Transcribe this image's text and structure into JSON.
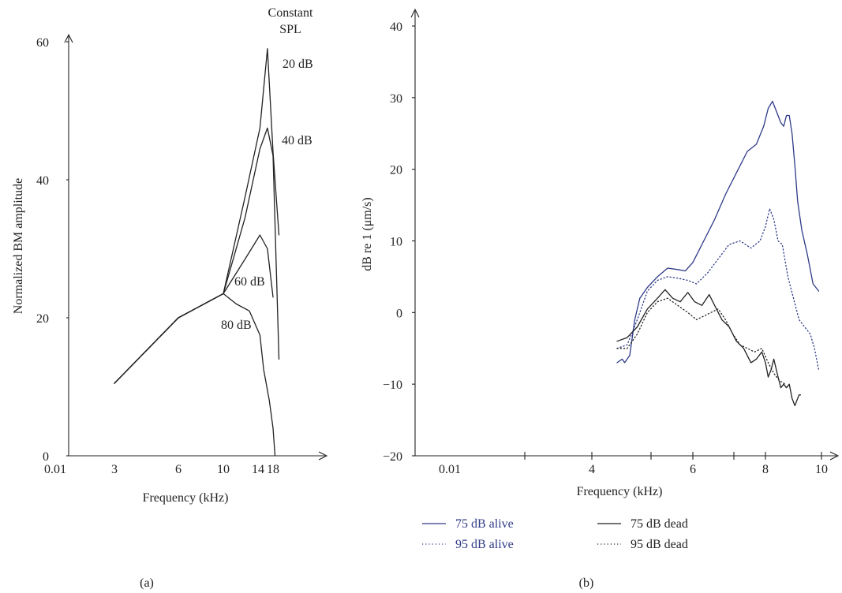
{
  "chart_data": [
    {
      "type": "line",
      "panel_label": "(a)",
      "xlabel": "Frequency (kHz)",
      "ylabel": "Normalized BM amplitude",
      "x_tick_labels": [
        "0.01",
        "3",
        "6",
        "10",
        "14",
        "18"
      ],
      "y_ticks": [
        0,
        20,
        40,
        60
      ],
      "ylim": [
        0,
        60
      ],
      "legend_title": "Constant\nSPL",
      "series": [
        {
          "name": "20 dB",
          "x": [
            3,
            6,
            10,
            12.5,
            14.5,
            16.5,
            18,
            19.5
          ],
          "y": [
            10.5,
            20,
            23.5,
            37.5,
            47.5,
            59,
            44,
            32
          ]
        },
        {
          "name": "40 dB",
          "x": [
            3,
            6,
            10,
            12.5,
            14.5,
            16.5,
            18,
            19.5
          ],
          "y": [
            10.5,
            20,
            23.5,
            34.5,
            44.5,
            47.5,
            43.5,
            14
          ]
        },
        {
          "name": "60 dB",
          "x": [
            3,
            6,
            10,
            12.5,
            14.5,
            16.5,
            18
          ],
          "y": [
            10.5,
            20,
            23.5,
            28.5,
            32,
            30,
            23
          ]
        },
        {
          "name": "80 dB",
          "x": [
            3,
            6,
            10,
            11.5,
            13,
            14.5,
            15.5,
            17,
            18,
            18.5
          ],
          "y": [
            10.5,
            20,
            23.5,
            22,
            21,
            17.5,
            12.5,
            8,
            4,
            0
          ]
        }
      ]
    },
    {
      "type": "line",
      "panel_label": "(b)",
      "xlabel": "Frequency (kHz)",
      "ylabel": "dB re 1 (μm/s)",
      "x_tick_labels": [
        "0.01",
        "4",
        "6",
        "8",
        "10"
      ],
      "y_ticks": [
        -20,
        -10,
        0,
        10,
        20,
        30,
        40
      ],
      "ylim": [
        -20,
        40
      ],
      "legend": "bottom",
      "series": [
        {
          "name": "75 dB alive",
          "color": "#2e3a87",
          "style": "solid",
          "x": [
            4.5,
            4.6,
            4.65,
            4.75,
            4.85,
            4.95,
            5.1,
            5.3,
            5.5,
            5.7,
            5.85,
            6.0,
            6.3,
            6.6,
            6.9,
            7.2,
            7.5,
            7.75,
            7.95,
            8.1,
            8.25,
            8.4,
            8.55,
            8.65,
            8.75,
            8.85,
            8.95,
            9.05,
            9.15,
            9.3,
            9.5,
            9.7,
            9.9
          ],
          "y": [
            -7,
            -6.5,
            -7,
            -6,
            -1,
            2,
            3.5,
            5,
            6.2,
            6,
            5.8,
            7,
            10,
            13,
            16.5,
            19.5,
            22.5,
            23.5,
            26,
            28.5,
            29.5,
            28,
            26.5,
            26,
            27.5,
            27.5,
            25,
            20.5,
            15.5,
            11.5,
            8,
            4,
            3
          ]
        },
        {
          "name": "95 dB alive",
          "color": "#2e3a87",
          "style": "dotted",
          "x": [
            4.5,
            4.7,
            4.9,
            5.1,
            5.3,
            5.5,
            5.7,
            5.9,
            6.1,
            6.4,
            6.7,
            7.0,
            7.3,
            7.6,
            7.85,
            8.0,
            8.15,
            8.3,
            8.45,
            8.6,
            8.8,
            9.0,
            9.2,
            9.4,
            9.6,
            9.75,
            9.9
          ],
          "y": [
            -5,
            -4.5,
            -1,
            3,
            4.5,
            5,
            4.8,
            4.5,
            4,
            5.5,
            7.5,
            9.5,
            10,
            9,
            10,
            12,
            14.5,
            13,
            10,
            9.5,
            5,
            2,
            -1,
            -2,
            -3,
            -5,
            -8
          ]
        },
        {
          "name": "75 dB dead",
          "color": "#222222",
          "style": "solid",
          "x": [
            4.5,
            4.7,
            4.9,
            5.1,
            5.3,
            5.45,
            5.6,
            5.75,
            5.9,
            6.05,
            6.25,
            6.45,
            6.6,
            6.8,
            7.0,
            7.2,
            7.4,
            7.6,
            7.75,
            7.9,
            8.0,
            8.1,
            8.2,
            8.3,
            8.45,
            8.55,
            8.65,
            8.75,
            8.85,
            8.95,
            9.05,
            9.15,
            9.2,
            9.25
          ],
          "y": [
            -4,
            -3.5,
            -2,
            0.5,
            2,
            3.2,
            2,
            1.5,
            2.8,
            1.5,
            1,
            2.5,
            1,
            -1,
            -2,
            -4,
            -5,
            -7,
            -6.5,
            -5.5,
            -7,
            -9,
            -8,
            -6.5,
            -9,
            -10.5,
            -10,
            -10.5,
            -10,
            -12,
            -13,
            -12,
            -11.5,
            -11.5
          ]
        },
        {
          "name": "95 dB dead",
          "color": "#222222",
          "style": "dotted",
          "x": [
            4.5,
            4.7,
            4.9,
            5.1,
            5.3,
            5.5,
            5.7,
            5.9,
            6.1,
            6.3,
            6.5,
            6.7,
            6.9,
            7.1,
            7.3,
            7.5,
            7.7,
            7.9,
            8.1,
            8.3,
            8.5,
            8.7
          ],
          "y": [
            -5,
            -5,
            -3,
            0,
            1.5,
            2,
            1,
            0,
            -1,
            -0.5,
            0,
            0.5,
            -1,
            -3,
            -4.5,
            -5,
            -5.5,
            -5,
            -7,
            -8.5,
            -9.5,
            -10
          ]
        }
      ]
    }
  ]
}
